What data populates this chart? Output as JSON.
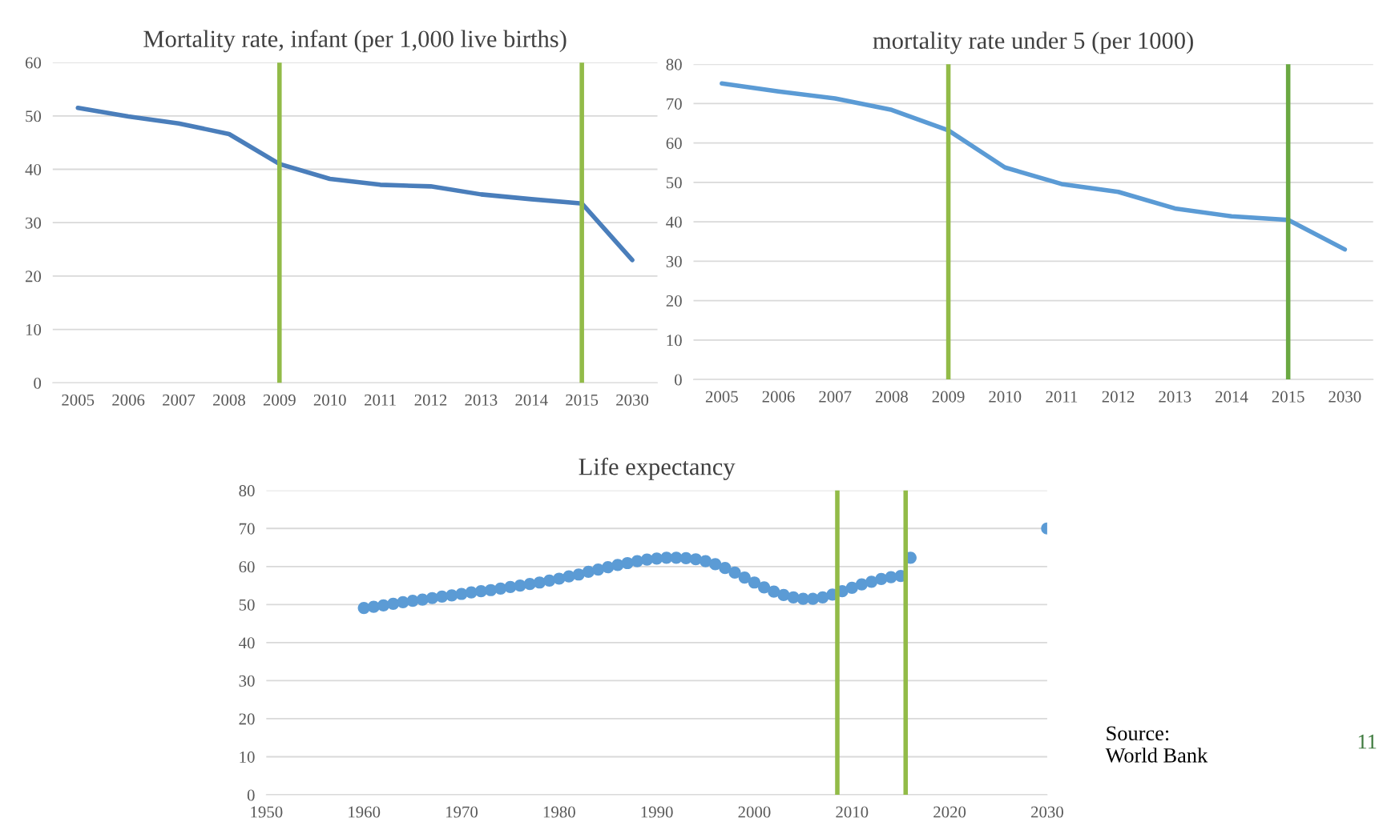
{
  "chart_data": [
    {
      "type": "line",
      "title": "Mortality rate, infant (per 1,000 live births)",
      "categories": [
        "2005",
        "2006",
        "2007",
        "2008",
        "2009",
        "2010",
        "2011",
        "2012",
        "2013",
        "2014",
        "2015",
        "2030"
      ],
      "series": [
        {
          "color": "#4a7ebb",
          "values": [
            51.5,
            49.9,
            48.6,
            46.6,
            41.0,
            38.2,
            37.1,
            36.8,
            35.3,
            34.4,
            33.6,
            23.0
          ]
        }
      ],
      "ylim": [
        0,
        60
      ],
      "yticks": [
        0,
        10,
        20,
        30,
        40,
        50,
        60
      ],
      "grid": "y",
      "marker": "none",
      "line_style": "solid",
      "ref_lines": [
        {
          "axis": "x",
          "value": "2009",
          "color": "#92bb48"
        },
        {
          "axis": "x",
          "value": "2015",
          "color": "#92bb48"
        }
      ]
    },
    {
      "type": "line",
      "title": "mortality rate under 5 (per 1000)",
      "categories": [
        "2005",
        "2006",
        "2007",
        "2008",
        "2009",
        "2010",
        "2011",
        "2012",
        "2013",
        "2014",
        "2015",
        "2030"
      ],
      "series": [
        {
          "color": "#5b9bd5",
          "values": [
            75.1,
            73.1,
            71.3,
            68.4,
            63.2,
            53.8,
            49.6,
            47.6,
            43.4,
            41.4,
            40.5,
            33.0
          ]
        }
      ],
      "ylim": [
        0,
        80
      ],
      "yticks": [
        0,
        10,
        20,
        30,
        40,
        50,
        60,
        70,
        80
      ],
      "grid": "y",
      "marker": "none",
      "line_style": "solid",
      "ref_lines": [
        {
          "axis": "x",
          "value": "2009",
          "color": "#92bb48"
        },
        {
          "axis": "x",
          "value": "2015",
          "color": "#6aa842"
        }
      ]
    },
    {
      "type": "scatter",
      "title": "Life expectancy",
      "series": [
        {
          "color": "#5b9bd5",
          "x": [
            1960,
            1961,
            1962,
            1963,
            1964,
            1965,
            1966,
            1967,
            1968,
            1969,
            1970,
            1971,
            1972,
            1973,
            1974,
            1975,
            1976,
            1977,
            1978,
            1979,
            1980,
            1981,
            1982,
            1983,
            1984,
            1985,
            1986,
            1987,
            1988,
            1989,
            1990,
            1991,
            1992,
            1993,
            1994,
            1995,
            1996,
            1997,
            1998,
            1999,
            2000,
            2001,
            2002,
            2003,
            2004,
            2005,
            2006,
            2007,
            2008,
            2009,
            2010,
            2011,
            2012,
            2013,
            2014,
            2015,
            2016,
            2030
          ],
          "values": [
            49.1,
            49.4,
            49.8,
            50.2,
            50.6,
            51.0,
            51.3,
            51.7,
            52.1,
            52.4,
            52.8,
            53.2,
            53.5,
            53.8,
            54.2,
            54.6,
            55.0,
            55.4,
            55.8,
            56.3,
            56.8,
            57.4,
            57.9,
            58.6,
            59.2,
            59.8,
            60.4,
            60.9,
            61.4,
            61.8,
            62.1,
            62.3,
            62.3,
            62.2,
            61.9,
            61.4,
            60.6,
            59.6,
            58.4,
            57.1,
            55.8,
            54.5,
            53.4,
            52.5,
            51.9,
            51.5,
            51.5,
            51.9,
            52.6,
            53.5,
            54.4,
            55.3,
            56.0,
            56.7,
            57.2,
            57.5,
            62.3,
            70.0
          ]
        }
      ],
      "xlim": [
        1950,
        2030
      ],
      "xticks": [
        1950,
        1960,
        1970,
        1980,
        1990,
        2000,
        2010,
        2020,
        2030
      ],
      "ylim": [
        0,
        80
      ],
      "yticks": [
        0,
        10,
        20,
        30,
        40,
        50,
        60,
        70,
        80
      ],
      "grid": "y",
      "marker": "circle",
      "ref_lines": [
        {
          "axis": "x",
          "value": 2008.5,
          "color": "#92bb48"
        },
        {
          "axis": "x",
          "value": 2015.5,
          "color": "#92bb48"
        }
      ],
      "annotations": [
        "Source:\nWorld Bank",
        "11"
      ]
    }
  ]
}
